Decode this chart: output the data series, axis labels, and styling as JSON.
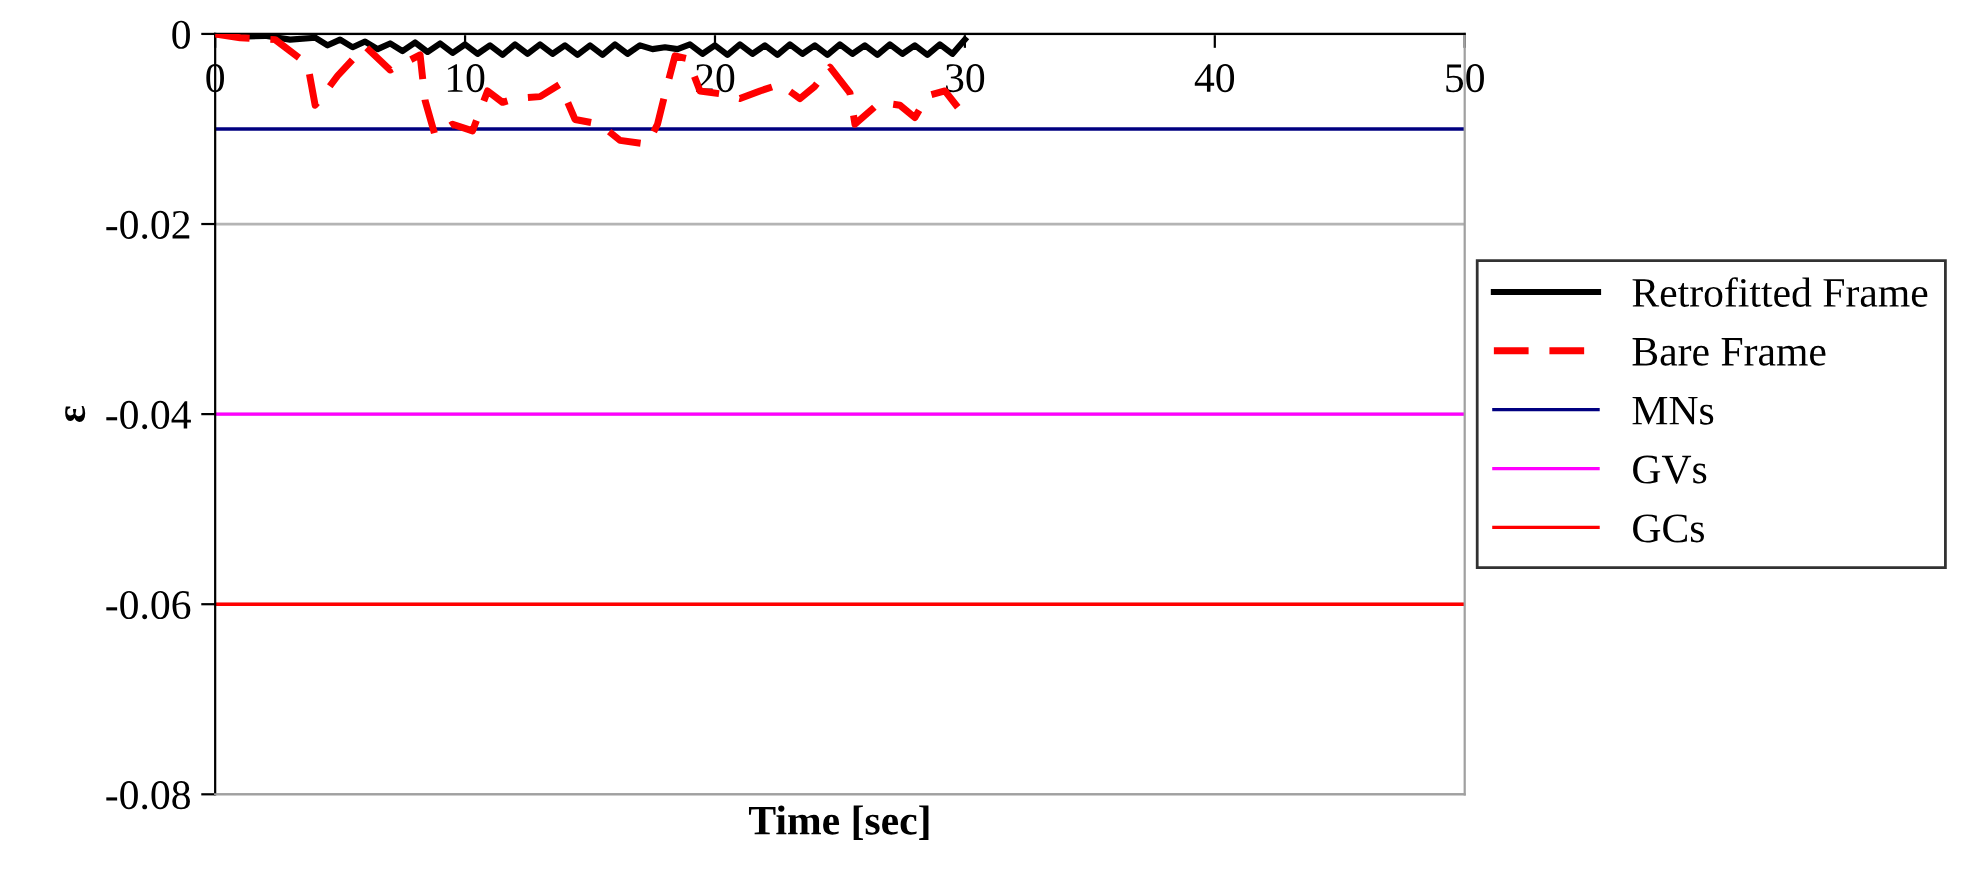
{
  "chart_data": {
    "type": "line",
    "xlabel": "Time [sec]",
    "ylabel": "ε",
    "xlim": [
      0,
      50
    ],
    "xticks": [
      0,
      10,
      20,
      30,
      40,
      50
    ],
    "ylim": [
      -0.08,
      0
    ],
    "yticks": [
      0,
      -0.02,
      -0.04,
      -0.06,
      -0.08
    ],
    "grid": "y",
    "legend": "right",
    "series": [
      {
        "name": "Retrofitted Frame",
        "color": "#000000",
        "line_style": "solid",
        "x": [
          0,
          1,
          2,
          3,
          4,
          4.5,
          5,
          5.5,
          6,
          6.5,
          7,
          7.5,
          8,
          8.5,
          9,
          9.5,
          10,
          10.5,
          11,
          11.5,
          12,
          12.5,
          13,
          13.5,
          14,
          14.5,
          15,
          15.5,
          16,
          16.5,
          17,
          17.5,
          18,
          18.5,
          19,
          19.5,
          20,
          20.5,
          21,
          21.5,
          22,
          22.5,
          23,
          23.5,
          24,
          24.5,
          25,
          25.5,
          26,
          26.5,
          27,
          27.5,
          28,
          28.5,
          29,
          29.5,
          30
        ],
        "values": [
          0,
          -0.0003,
          -0.0002,
          -0.0006,
          -0.0004,
          -0.0012,
          -0.0006,
          -0.0014,
          -0.0008,
          -0.0016,
          -0.001,
          -0.0018,
          -0.0009,
          -0.0019,
          -0.001,
          -0.002,
          -0.0011,
          -0.0021,
          -0.0012,
          -0.0022,
          -0.0011,
          -0.0021,
          -0.0011,
          -0.0021,
          -0.0012,
          -0.0022,
          -0.0012,
          -0.0022,
          -0.0011,
          -0.0021,
          -0.0012,
          -0.0016,
          -0.0014,
          -0.0016,
          -0.0011,
          -0.0021,
          -0.0012,
          -0.0022,
          -0.0011,
          -0.0021,
          -0.0012,
          -0.0022,
          -0.0011,
          -0.0021,
          -0.0012,
          -0.0022,
          -0.0011,
          -0.0021,
          -0.0012,
          -0.0022,
          -0.0011,
          -0.0021,
          -0.0012,
          -0.0022,
          -0.0011,
          -0.0021,
          -0.0006
        ]
      },
      {
        "name": "Bare Frame",
        "color": "#ff0000",
        "line_style": "dashed",
        "x": [
          0,
          1,
          2.4,
          3.7,
          4,
          4.3,
          4.9,
          6,
          7,
          8.2,
          8.4,
          8.8,
          9.5,
          10.3,
          10.9,
          11.5,
          12,
          13,
          13.8,
          14.4,
          15.4,
          16.2,
          17.3,
          17.7,
          18,
          18.4,
          18.9,
          19.4,
          20.2,
          21,
          21.8,
          22.6,
          23.4,
          24,
          24.6,
          25.4,
          25.6,
          26.6,
          27.4,
          28,
          28.5,
          29.2,
          29.8
        ],
        "values": [
          0,
          -0.0004,
          -0.0006,
          -0.0032,
          -0.0075,
          -0.0065,
          -0.0044,
          -0.0013,
          -0.0038,
          -0.0022,
          -0.007,
          -0.0107,
          -0.0095,
          -0.0102,
          -0.006,
          -0.0072,
          -0.0068,
          -0.0066,
          -0.0053,
          -0.009,
          -0.0095,
          -0.0112,
          -0.0116,
          -0.0095,
          -0.0063,
          -0.0023,
          -0.0026,
          -0.006,
          -0.0063,
          -0.0068,
          -0.006,
          -0.0053,
          -0.0068,
          -0.0055,
          -0.0035,
          -0.0062,
          -0.0095,
          -0.0072,
          -0.0075,
          -0.0088,
          -0.0065,
          -0.006,
          -0.008
        ]
      }
    ],
    "ref_lines": [
      {
        "axis": "y",
        "value": -0.01,
        "label": "MNs",
        "color": "#000080"
      },
      {
        "axis": "y",
        "value": -0.04,
        "label": "GVs",
        "color": "#ff00ff"
      },
      {
        "axis": "y",
        "value": -0.06,
        "label": "GCs",
        "color": "#ff0000"
      }
    ]
  }
}
